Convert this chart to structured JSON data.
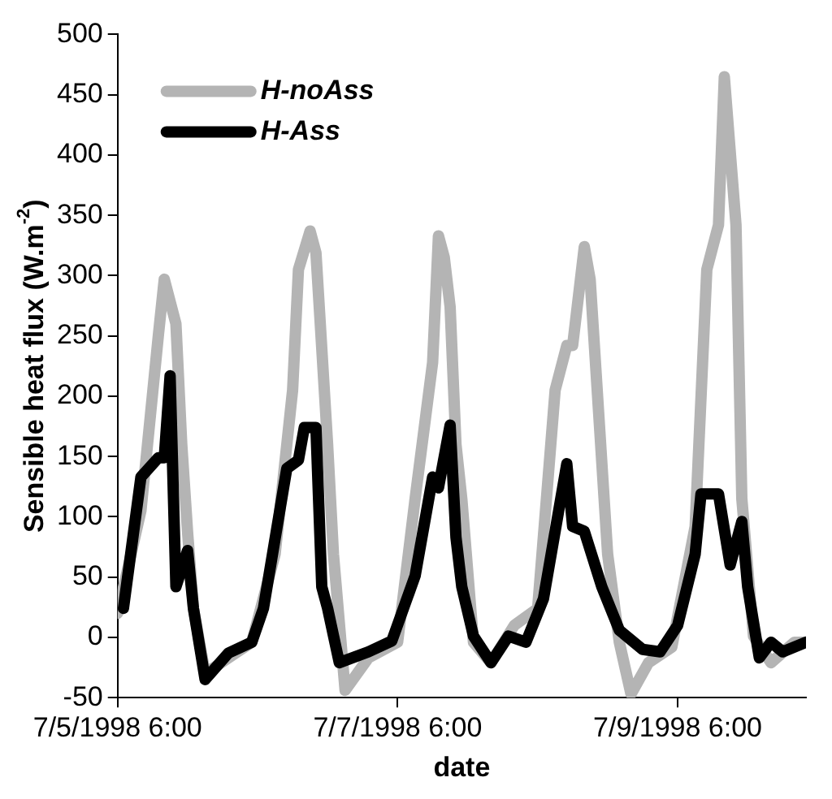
{
  "chart_data": {
    "type": "line",
    "xlabel": "date",
    "ylabel": "Sensible heat flux (W.m$^{-2}$)",
    "xlim": [
      "1998-07-05T06:00",
      "1998-07-10T04:00"
    ],
    "xticks": [
      {
        "value": "1998-07-05T06:00",
        "label": "7/5/1998 6:00"
      },
      {
        "value": "1998-07-07T06:00",
        "label": "7/7/1998 6:00"
      },
      {
        "value": "1998-07-09T06:00",
        "label": "7/9/1998 6:00"
      }
    ],
    "ylim": [
      -50,
      500
    ],
    "yticks": [
      -50,
      0,
      50,
      100,
      150,
      200,
      250,
      300,
      350,
      400,
      450,
      500
    ],
    "grid": false,
    "legend": "top left",
    "marker": "none",
    "line_style": "solid",
    "series": [
      {
        "name": "H-noAss",
        "color": "#b4b4b4",
        "x": [
          "1998-07-05T06:00",
          "1998-07-05T10:00",
          "1998-07-05T13:00",
          "1998-07-05T14:00",
          "1998-07-05T16:00",
          "1998-07-05T17:00",
          "1998-07-05T18:00",
          "1998-07-05T19:00",
          "1998-07-05T21:00",
          "1998-07-06T05:00",
          "1998-07-06T09:00",
          "1998-07-06T12:00",
          "1998-07-06T13:00",
          "1998-07-06T15:00",
          "1998-07-06T16:00",
          "1998-07-06T18:00",
          "1998-07-06T19:00",
          "1998-07-06T21:00",
          "1998-07-07T01:00",
          "1998-07-07T06:00",
          "1998-07-07T09:00",
          "1998-07-07T12:00",
          "1998-07-07T13:00",
          "1998-07-07T14:00",
          "1998-07-07T15:00",
          "1998-07-07T16:00",
          "1998-07-07T17:00",
          "1998-07-07T19:00",
          "1998-07-07T22:00",
          "1998-07-08T02:00",
          "1998-07-08T06:00",
          "1998-07-08T09:00",
          "1998-07-08T11:00",
          "1998-07-08T12:00",
          "1998-07-08T14:00",
          "1998-07-08T15:00",
          "1998-07-08T18:00",
          "1998-07-08T20:00",
          "1998-07-08T22:00",
          "1998-07-09T01:00",
          "1998-07-09T05:00",
          "1998-07-09T09:00",
          "1998-07-09T11:00",
          "1998-07-09T13:00",
          "1998-07-09T14:00",
          "1998-07-09T16:00",
          "1998-07-09T17:00",
          "1998-07-09T19:00",
          "1998-07-09T22:00",
          "1998-07-10T02:00",
          "1998-07-10T04:00"
        ],
        "values": [
          20,
          105,
          251,
          297,
          260,
          160,
          87,
          24,
          -30,
          -4,
          69,
          205,
          305,
          337,
          319,
          160,
          69,
          -44,
          -17,
          -4,
          115,
          228,
          333,
          315,
          274,
          160,
          115,
          -4,
          -21,
          10,
          24,
          205,
          242,
          242,
          324,
          297,
          69,
          -4,
          -47,
          -21,
          -8,
          92,
          305,
          342,
          465,
          342,
          115,
          1,
          -21,
          -4,
          -4
        ]
      },
      {
        "name": "H-Ass",
        "color": "#000000",
        "x": [
          "1998-07-05T07:00",
          "1998-07-05T10:00",
          "1998-07-05T13:00",
          "1998-07-05T14:00",
          "1998-07-05T15:00",
          "1998-07-05T16:00",
          "1998-07-05T18:00",
          "1998-07-05T19:00",
          "1998-07-05T21:00",
          "1998-07-06T01:00",
          "1998-07-06T05:00",
          "1998-07-06T07:00",
          "1998-07-06T11:00",
          "1998-07-06T13:00",
          "1998-07-06T14:00",
          "1998-07-06T16:00",
          "1998-07-06T17:00",
          "1998-07-06T18:00",
          "1998-07-06T20:00",
          "1998-07-07T01:00",
          "1998-07-07T05:00",
          "1998-07-07T09:00",
          "1998-07-07T12:00",
          "1998-07-07T13:00",
          "1998-07-07T15:00",
          "1998-07-07T16:00",
          "1998-07-07T17:00",
          "1998-07-07T19:00",
          "1998-07-07T22:00",
          "1998-07-08T01:00",
          "1998-07-08T04:00",
          "1998-07-08T07:00",
          "1998-07-08T11:00",
          "1998-07-08T12:00",
          "1998-07-08T14:00",
          "1998-07-08T17:00",
          "1998-07-08T20:00",
          "1998-07-09T00:00",
          "1998-07-09T03:00",
          "1998-07-09T06:00",
          "1998-07-09T09:00",
          "1998-07-09T10:00",
          "1998-07-09T13:00",
          "1998-07-09T15:00",
          "1998-07-09T17:00",
          "1998-07-09T18:00",
          "1998-07-09T20:00",
          "1998-07-09T22:00",
          "1998-07-10T00:00",
          "1998-07-10T04:00"
        ],
        "values": [
          24,
          133,
          149,
          149,
          217,
          42,
          72,
          24,
          -35,
          -13,
          -4,
          24,
          140,
          147,
          174,
          174,
          42,
          24,
          -21,
          -12,
          -3,
          51,
          133,
          124,
          176,
          83,
          42,
          1,
          -21,
          1,
          -4,
          32,
          144,
          92,
          88,
          42,
          6,
          -10,
          -12,
          10,
          69,
          119,
          119,
          60,
          96,
          42,
          -17,
          -4,
          -12,
          -4
        ]
      }
    ]
  }
}
